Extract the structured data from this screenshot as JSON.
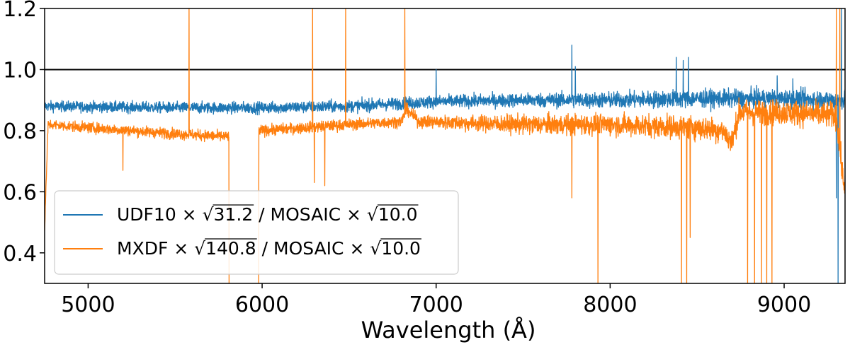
{
  "chart_data": {
    "type": "line",
    "xlabel": "Wavelength (Å)",
    "ylabel": "",
    "title": "",
    "xlim": [
      4750,
      9350
    ],
    "ylim": [
      0.3,
      1.2
    ],
    "xticks": [
      5000,
      6000,
      7000,
      8000,
      9000
    ],
    "yticks": [
      0.4,
      0.6,
      0.8,
      1.0,
      1.2
    ],
    "ytick_labels": [
      "0.4",
      "0.6",
      "0.8",
      "1.0",
      "1.2"
    ],
    "hline": 1.0,
    "grid": false,
    "legend_placement": "lower-left",
    "series": [
      {
        "name": "UDF10 × √31.2 / MOSAIC × √10.0",
        "legend": {
          "prefix": "UDF10 × ",
          "num": "31.2",
          "mid": " / MOSAIC × ",
          "den": "10.0"
        },
        "color": "#1f77b4",
        "baseline": [
          [
            4750,
            0.88
          ],
          [
            5500,
            0.875
          ],
          [
            6000,
            0.875
          ],
          [
            6500,
            0.88
          ],
          [
            7000,
            0.895
          ],
          [
            7500,
            0.9
          ],
          [
            8000,
            0.9
          ],
          [
            8500,
            0.905
          ],
          [
            9000,
            0.905
          ],
          [
            9300,
            0.9
          ]
        ],
        "noise": [
          [
            4750,
            0.012
          ],
          [
            7300,
            0.015
          ],
          [
            8300,
            0.02
          ],
          [
            9300,
            0.022
          ]
        ],
        "spikes": [
          [
            7000,
            1.0
          ],
          [
            7780,
            1.08
          ],
          [
            7800,
            1.01
          ],
          [
            8380,
            1.04
          ],
          [
            8420,
            1.03
          ],
          [
            8450,
            1.04
          ],
          [
            8960,
            0.98
          ],
          [
            9050,
            0.97
          ],
          [
            9300,
            0.58
          ],
          [
            9310,
            0.3
          ],
          [
            9330,
            1.2
          ]
        ]
      },
      {
        "name": "MXDF × √140.8 / MOSAIC × √10.0",
        "legend": {
          "prefix": "MXDF × ",
          "num": "140.8",
          "mid": " / MOSAIC × ",
          "den": "10.0"
        },
        "color": "#ff7f0e",
        "baseline": [
          [
            4750,
            0.48
          ],
          [
            4770,
            0.82
          ],
          [
            5000,
            0.81
          ],
          [
            5500,
            0.79
          ],
          [
            5800,
            0.78
          ],
          [
            5990,
            0.8
          ],
          [
            6500,
            0.82
          ],
          [
            6800,
            0.83
          ],
          [
            6830,
            0.87
          ],
          [
            6900,
            0.83
          ],
          [
            7500,
            0.82
          ],
          [
            8000,
            0.82
          ],
          [
            8500,
            0.81
          ],
          [
            8650,
            0.8
          ],
          [
            8700,
            0.76
          ],
          [
            8740,
            0.86
          ],
          [
            9000,
            0.86
          ],
          [
            9300,
            0.85
          ],
          [
            9340,
            0.63
          ]
        ],
        "noise": [
          [
            4750,
            0.012
          ],
          [
            6800,
            0.013
          ],
          [
            7500,
            0.022
          ],
          [
            8600,
            0.028
          ],
          [
            9300,
            0.03
          ]
        ],
        "gaps": [
          [
            5810,
            5980
          ]
        ],
        "spikes": [
          [
            5200,
            0.67
          ],
          [
            5580,
            1.2
          ],
          [
            5810,
            0.3
          ],
          [
            5980,
            0.3
          ],
          [
            6290,
            1.2
          ],
          [
            6300,
            0.63
          ],
          [
            6360,
            0.62
          ],
          [
            6480,
            1.2
          ],
          [
            6820,
            1.2
          ],
          [
            7780,
            0.58
          ],
          [
            7930,
            0.3
          ],
          [
            8410,
            0.3
          ],
          [
            8440,
            0.3
          ],
          [
            8460,
            0.45
          ],
          [
            8790,
            0.3
          ],
          [
            8830,
            0.3
          ],
          [
            8870,
            0.3
          ],
          [
            8900,
            0.3
          ],
          [
            8930,
            0.3
          ],
          [
            9300,
            1.2
          ],
          [
            9320,
            1.2
          ]
        ]
      }
    ]
  }
}
